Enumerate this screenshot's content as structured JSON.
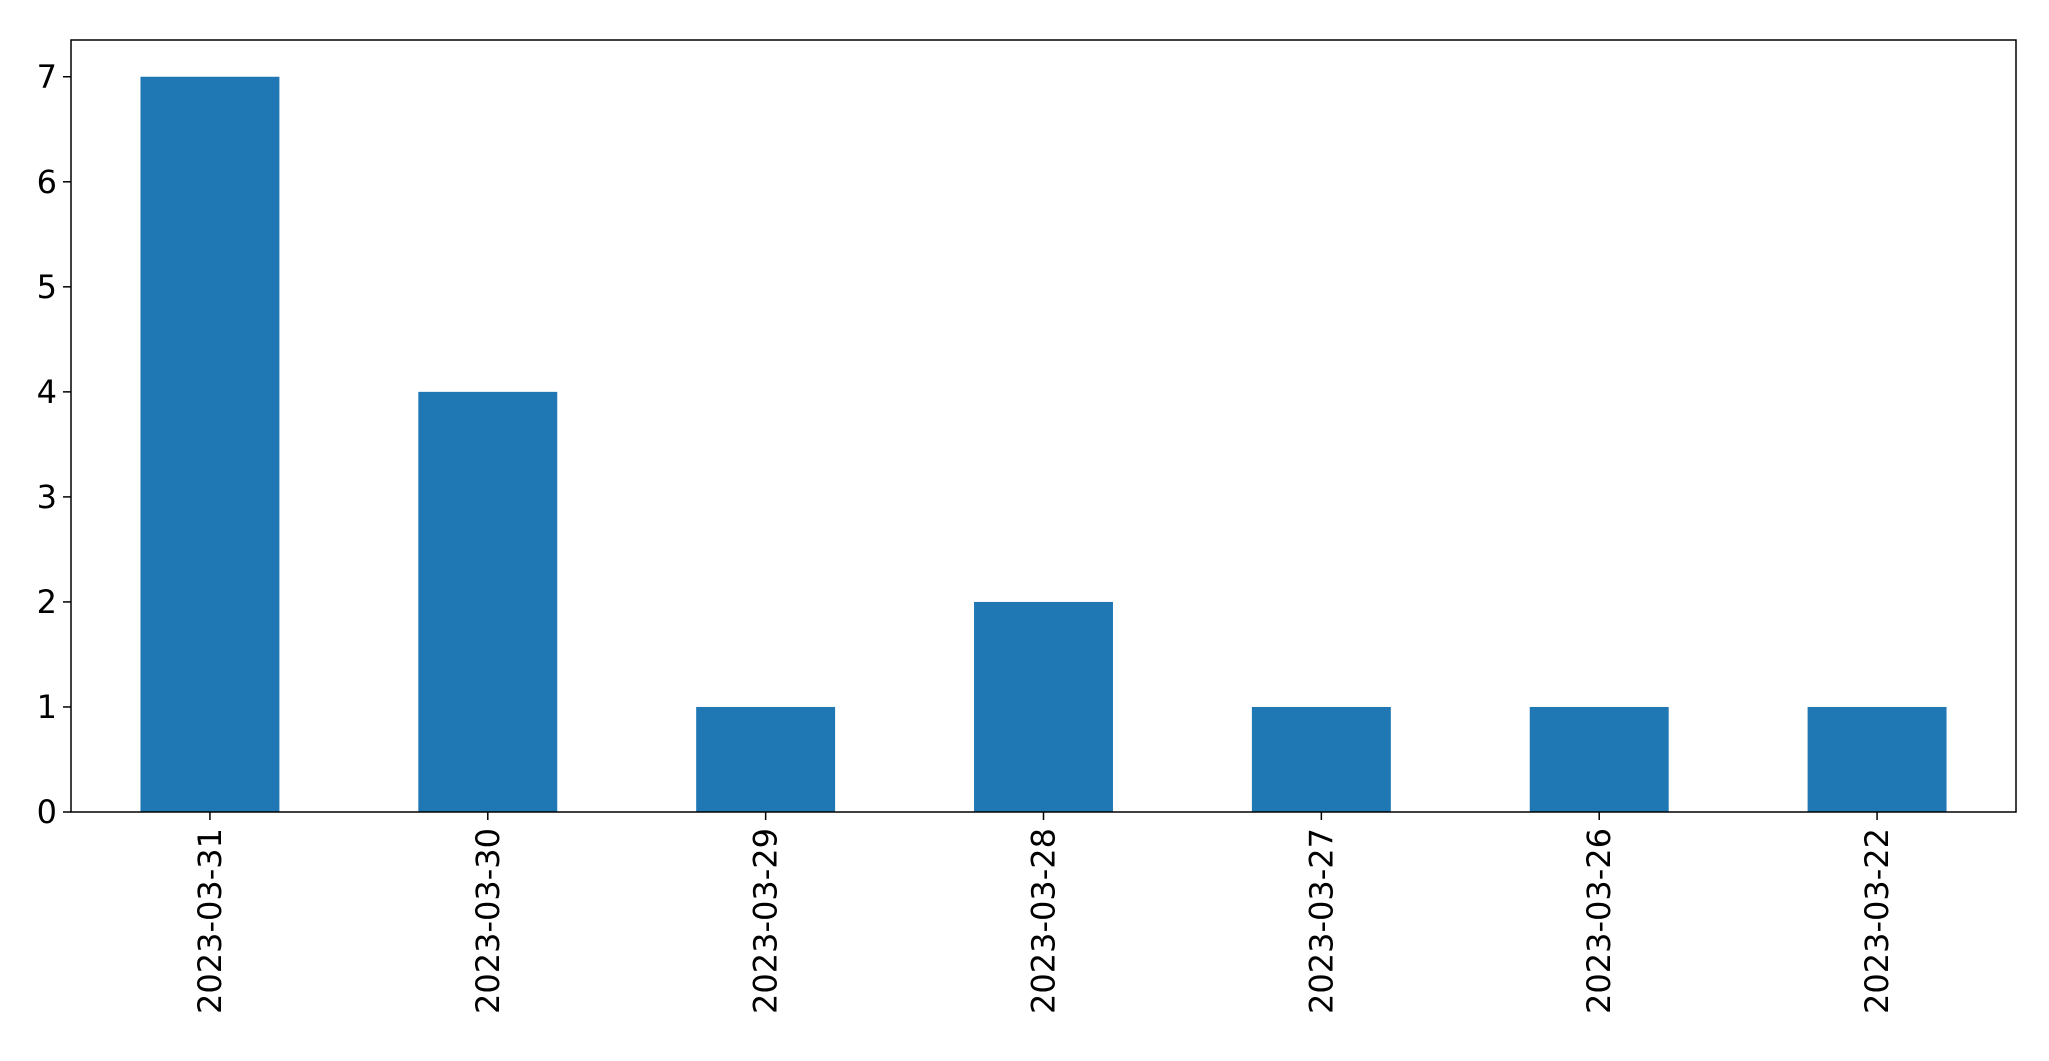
{
  "chart_data": {
    "type": "bar",
    "categories": [
      "2023-03-31",
      "2023-03-30",
      "2023-03-29",
      "2023-03-28",
      "2023-03-27",
      "2023-03-26",
      "2023-03-22"
    ],
    "values": [
      7,
      4,
      1,
      2,
      1,
      1,
      1
    ],
    "title": "",
    "xlabel": "",
    "ylabel": "",
    "ylim": [
      0,
      7.35
    ],
    "yticks": [
      0,
      1,
      2,
      3,
      4,
      5,
      6,
      7
    ],
    "grid": false,
    "legend": "none",
    "bar_color": "#1f77b4",
    "x_tick_rotation": "vertical"
  }
}
